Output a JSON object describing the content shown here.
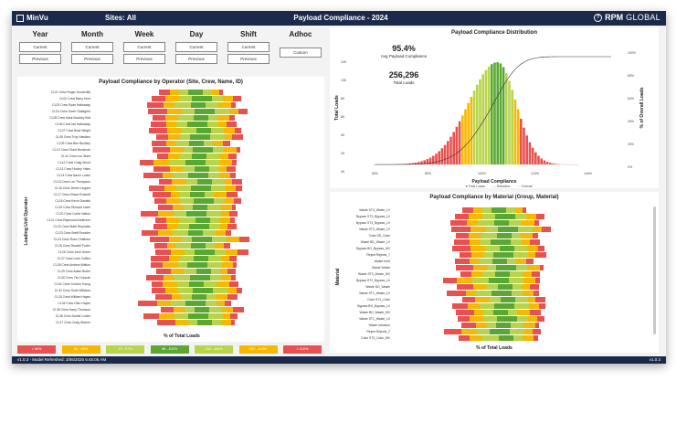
{
  "header": {
    "app_name": "MinVu",
    "sites": "Sites: All",
    "title": "Payload Compliance - 2024",
    "brand": "RPM",
    "brand2": "GLOBAL"
  },
  "filters": [
    {
      "label": "Year",
      "buttons": [
        "Current",
        "Previous"
      ]
    },
    {
      "label": "Month",
      "buttons": [
        "Current",
        "Previous"
      ]
    },
    {
      "label": "Week",
      "buttons": [
        "Current",
        "Previous"
      ]
    },
    {
      "label": "Day",
      "buttons": [
        "Current",
        "Previous"
      ]
    },
    {
      "label": "Shift",
      "buttons": [
        "Current",
        "Previous"
      ]
    },
    {
      "label": "Adhoc",
      "buttons": [
        "Custom"
      ]
    }
  ],
  "operator_panel": {
    "title": "Payload Compliance by Operator (Site, Crew, Name, ID)",
    "ylabel": "Loading Unit Operator",
    "xlabel": "% of Total Loads",
    "rows": [
      "CL01 Crew Roger Goodchild",
      "CL02 Crew Barry Kent",
      "CL03 Crew Ryan Hathaway",
      "CL04 Crew Owen Gallagher",
      "CL05 Crew Mark Buckley Bull",
      "CL06 Crew Ian Hathaway",
      "CL07 Crew Brad Wright",
      "CL08 Crew Troy Hawkins",
      "CL09 Crew Ben Buckley",
      "CL10 Crew Grant Beckman",
      "CL11 Crew Leo Ward",
      "CL12 Crew Craig Wood",
      "CL13 Crew Hooley Yates",
      "CL14 Crew Aaron Locke",
      "CL15 Crew Lou Thompson",
      "CL16 Crew Derek Lingard",
      "CL17 Crew Shaun Emmett",
      "CL18 Crew Kevin Daniels",
      "CL19 Crew Richard Lister",
      "CL20 Crew Curtis Hatton",
      "CL21 Crew Raymond Anderson",
      "CL22 Crew Mark Reynolds",
      "CL23 Crew Brett Rossiter",
      "CL24 Crew Ross Chatham",
      "CL25 Crew Russell Porter",
      "CL26 Crew Josh Green",
      "CL27 Crew Luke Collins",
      "CL28 Crew Andrew Walton",
      "CL29 Crew Adam Butler",
      "CL30 Crew Tim Duncan",
      "CL31 Crew Gordon Young",
      "CL32 Crew Scott Williams",
      "CL33 Crew William Hayes",
      "CL34 Crew Glen Hayes",
      "CL35 Crew Harry Thomson",
      "CL36 Crew Daniel Lockie",
      "CL37 Crew Craig Warren"
    ]
  },
  "distribution": {
    "title": "Payload Compliance Distribution",
    "avg_value": "95.4%",
    "avg_label": "Avg Payload Compliance",
    "total_value": "256,296",
    "total_label": "Total Loads",
    "ylabel": "Total Loads",
    "y2label": "% of Overall Loads",
    "xlabel": "Payload Compliance",
    "yticks": [
      "12K",
      "10K",
      "8K",
      "6K",
      "4K",
      "2K",
      "0K"
    ],
    "y2ticks": [
      "100%",
      "80%",
      "60%",
      "40%",
      "20%",
      "0%"
    ],
    "xticks": [
      "60%",
      "80%",
      "100%",
      "120%",
      "140%"
    ],
    "legend": [
      "Total Loads",
      "Selection",
      "Overall"
    ]
  },
  "material_panel": {
    "title": "Payload Compliance by Material (Group, Material)",
    "ylabel": "Material",
    "xlabel": "% of Total Loads",
    "rows": [
      "Waste ST4_Waste_LV",
      "Bypass ST3_Bypass_LV",
      "Bypass ST4_Bypass_LV",
      "Waste ST3_Waste_LV",
      "Coke SD_Coke",
      "Waste BD_Waste_LV",
      "Bypass BO_Bypass_MV",
      "Reject Rejects_7",
      "Waste Inert",
      "Waste Waste",
      "Waste ST3_Waste_MV",
      "Bypass ST2_Bypass_LV",
      "Waste DD_Waste",
      "Waste ST1_Waste_LV",
      "Coke ST1_Coke",
      "Bypass BO_Bypass_LV",
      "Waste BD_Waste_MV",
      "Waste ST1_Waste_LV",
      "Waste Intrusion",
      "Reject Rejects_2",
      "Coke ST3_Coke_MV"
    ]
  },
  "legend": [
    {
      "label": "< 50%",
      "color": "#e8514f"
    },
    {
      "label": "50 - 69%",
      "color": "#f7b800"
    },
    {
      "label": "70 - 97%",
      "color": "#b8d44a"
    },
    {
      "label": "98 - 102%",
      "color": "#5aa832"
    },
    {
      "label": "103 - 106%",
      "color": "#b8d44a"
    },
    {
      "label": "107 - 110%",
      "color": "#f7b800"
    },
    {
      "label": "> 110%",
      "color": "#e8514f"
    }
  ],
  "footer": {
    "left": "v1.0.3 - Model Refreshed: 3/06/2025 6:45:05 AM",
    "right": "v1.0.3"
  }
}
